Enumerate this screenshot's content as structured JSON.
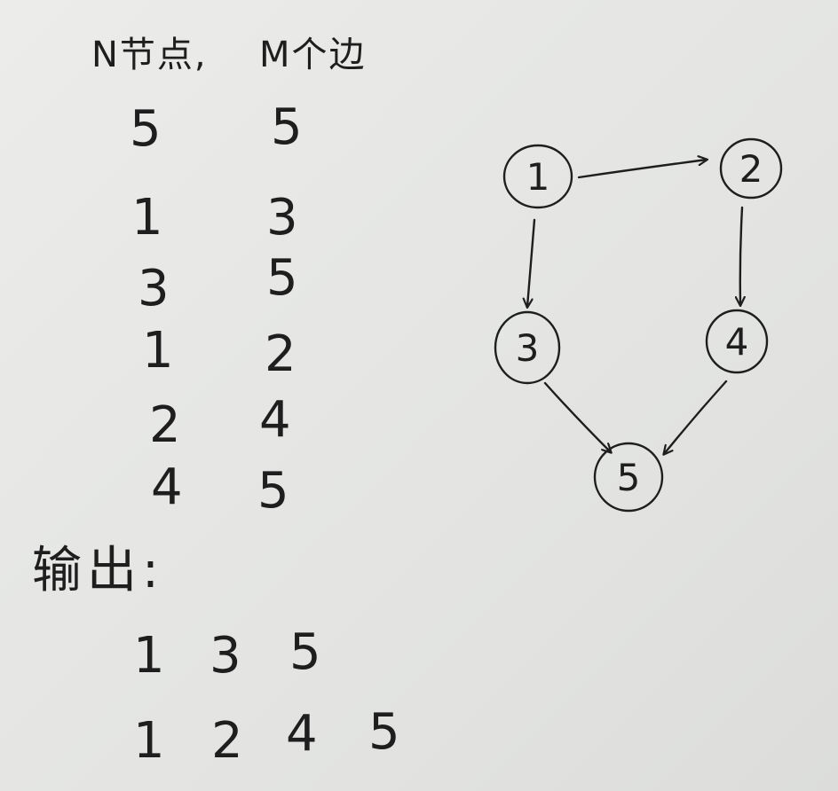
{
  "header": {
    "nodes_label": "N节点,",
    "edges_label": "M个边"
  },
  "input": {
    "rows": [
      [
        "5",
        "5"
      ],
      [
        "1",
        "3"
      ],
      [
        "3",
        "5"
      ],
      [
        "1",
        "2"
      ],
      [
        "2",
        "4"
      ],
      [
        "4",
        "5"
      ]
    ]
  },
  "output": {
    "label": "输出:",
    "paths": [
      [
        "1",
        "3",
        "5"
      ],
      [
        "1",
        "2",
        "4",
        "5"
      ]
    ]
  },
  "graph": {
    "nodes": [
      "1",
      "2",
      "3",
      "4",
      "5"
    ],
    "edges": [
      [
        "1",
        "2"
      ],
      [
        "1",
        "3"
      ],
      [
        "2",
        "4"
      ],
      [
        "3",
        "5"
      ],
      [
        "4",
        "5"
      ]
    ],
    "stroke_color": "#1e1e1e"
  }
}
